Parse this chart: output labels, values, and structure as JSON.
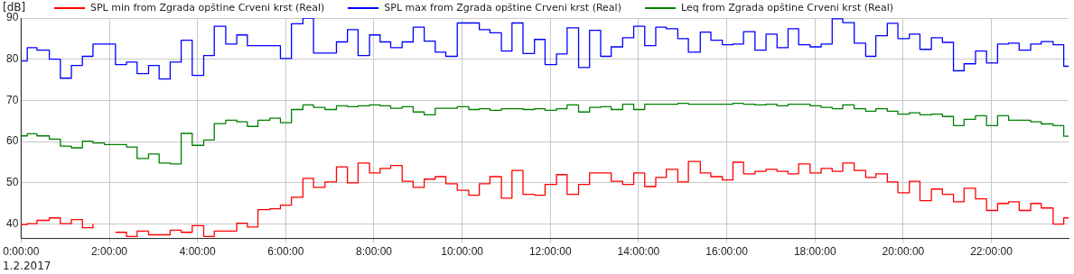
{
  "chart_data": {
    "type": "step",
    "ylabel": "[dB]",
    "annotations": [
      "1.2.2017"
    ],
    "legend": "top left",
    "grid": true,
    "line_style": "solid",
    "xlim": [
      0,
      23.75
    ],
    "ylim": [
      36.5,
      90
    ],
    "xticks": [
      {
        "value": 0,
        "label": "0:00:00"
      },
      {
        "value": 2,
        "label": "2:00:00"
      },
      {
        "value": 4,
        "label": "4:00:00"
      },
      {
        "value": 6,
        "label": "6:00:00"
      },
      {
        "value": 8,
        "label": "8:00:00"
      },
      {
        "value": 10,
        "label": "10:00:00"
      },
      {
        "value": 12,
        "label": "12:00:00"
      },
      {
        "value": 14,
        "label": "14:00:00"
      },
      {
        "value": 16,
        "label": "16:00:00"
      },
      {
        "value": 18,
        "label": "18:00:00"
      },
      {
        "value": 20,
        "label": "20:00:00"
      },
      {
        "value": 22,
        "label": "22:00:00"
      }
    ],
    "yticks": [
      40,
      50,
      60,
      70,
      80,
      90
    ],
    "series": [
      {
        "name": "SPL min from Zgrada opštine Crveni krst (Real)",
        "color": "#ff0000",
        "x": [
          0,
          0.14,
          0.36,
          0.64,
          0.89,
          1.14,
          1.39,
          1.63,
          1.89,
          2.14,
          2.39,
          2.63,
          2.89,
          3.38,
          3.63,
          3.88,
          4.14,
          4.38,
          4.89,
          5.13,
          5.37,
          5.64,
          5.88,
          6.13,
          6.39,
          6.63,
          6.89,
          7.15,
          7.4,
          7.64,
          7.9,
          8.14,
          8.38,
          8.64,
          8.89,
          9.14,
          9.39,
          9.63,
          9.89,
          10.15,
          10.39,
          10.63,
          10.89,
          11.13,
          11.38,
          11.64,
          11.88,
          12.14,
          12.38,
          12.64,
          12.89,
          13.38,
          13.64,
          13.89,
          14.14,
          14.39,
          14.63,
          14.89,
          15.13,
          15.4,
          15.64,
          15.9,
          16.14,
          16.38,
          16.64,
          16.89,
          17.14,
          17.39,
          17.63,
          17.89,
          18.14,
          18.39,
          18.63,
          18.89,
          19.15,
          19.38,
          19.64,
          19.88,
          20.14,
          20.38,
          20.64,
          20.89,
          21.14,
          21.38,
          21.64,
          21.89,
          22.14,
          22.39,
          22.63,
          22.89,
          23.13,
          23.4,
          23.64,
          23.75
        ],
        "values": [
          39.9,
          40.1,
          40.9,
          41.5,
          40.1,
          41.1,
          39.1,
          40.1,
          null,
          38.0,
          37.0,
          38.3,
          37.4,
          38.5,
          38.0,
          39.6,
          37.0,
          38.3,
          40.2,
          39.3,
          43.5,
          43.7,
          44.6,
          46.5,
          51.1,
          48.9,
          50.2,
          53.9,
          50.0,
          54.8,
          52.4,
          53.5,
          54.2,
          50.4,
          48.9,
          50.9,
          51.5,
          49.8,
          48.2,
          47.0,
          49.8,
          51.5,
          46.3,
          53.0,
          47.2,
          47.0,
          49.6,
          52.0,
          47.2,
          49.6,
          52.4,
          50.4,
          49.6,
          52.4,
          49.1,
          51.3,
          53.3,
          50.2,
          55.2,
          52.4,
          51.5,
          50.7,
          55.0,
          52.2,
          52.8,
          53.3,
          52.8,
          52.2,
          54.6,
          52.4,
          53.5,
          52.8,
          54.8,
          53.0,
          51.3,
          52.2,
          50.2,
          47.6,
          50.4,
          45.7,
          48.5,
          47.2,
          45.4,
          48.7,
          46.1,
          43.3,
          45.0,
          45.4,
          43.3,
          45.0,
          43.9,
          40.0,
          41.5,
          41.5
        ]
      },
      {
        "name": "SPL max from Zgrada opštine Crveni krst (Real)",
        "color": "#0000ff",
        "x": [
          0,
          0.14,
          0.36,
          0.64,
          0.89,
          1.14,
          1.39,
          1.63,
          2.14,
          2.39,
          2.63,
          2.89,
          3.13,
          3.38,
          3.63,
          3.88,
          4.14,
          4.38,
          4.64,
          4.89,
          5.13,
          5.88,
          6.13,
          6.39,
          6.63,
          7.15,
          7.4,
          7.64,
          7.9,
          8.14,
          8.38,
          8.64,
          8.89,
          9.14,
          9.39,
          9.63,
          9.89,
          10.39,
          10.63,
          10.89,
          11.13,
          11.38,
          11.64,
          11.88,
          12.14,
          12.38,
          12.64,
          12.89,
          13.14,
          13.38,
          13.64,
          13.89,
          14.14,
          14.39,
          14.63,
          14.89,
          15.13,
          15.4,
          15.64,
          15.9,
          16.14,
          16.38,
          16.64,
          16.89,
          17.14,
          17.39,
          17.63,
          17.89,
          18.14,
          18.39,
          18.63,
          18.89,
          19.15,
          19.38,
          19.64,
          19.88,
          20.14,
          20.38,
          20.64,
          20.89,
          21.14,
          21.38,
          21.64,
          21.89,
          22.14,
          22.39,
          22.63,
          22.89,
          23.13,
          23.4,
          23.64,
          23.75
        ],
        "values": [
          79.6,
          82.8,
          82.2,
          80.0,
          75.4,
          78.5,
          80.7,
          83.7,
          78.7,
          79.3,
          76.5,
          78.5,
          75.2,
          79.3,
          84.6,
          76.1,
          80.9,
          88.0,
          83.7,
          85.9,
          83.3,
          80.2,
          88.6,
          90.0,
          81.5,
          84.2,
          87.2,
          80.9,
          85.9,
          84.2,
          82.8,
          84.2,
          87.8,
          84.4,
          81.7,
          80.7,
          88.8,
          87.2,
          86.4,
          82.0,
          88.8,
          81.4,
          84.8,
          78.7,
          81.3,
          87.6,
          78.0,
          87.0,
          80.7,
          83.0,
          85.2,
          88.0,
          83.3,
          87.8,
          87.4,
          85.0,
          81.7,
          86.6,
          84.6,
          83.5,
          83.7,
          86.7,
          82.2,
          86.1,
          82.8,
          87.4,
          83.5,
          83.0,
          83.7,
          89.8,
          88.9,
          83.9,
          80.7,
          85.7,
          88.7,
          85.0,
          86.1,
          82.4,
          85.2,
          84.1,
          77.2,
          78.9,
          82.0,
          79.1,
          83.7,
          83.9,
          82.2,
          83.7,
          84.3,
          83.5,
          78.3,
          78.3
        ]
      },
      {
        "name": "Leq from Zgrada opštine Crveni krst (Real)",
        "color": "#008000",
        "x": [
          0,
          0.14,
          0.36,
          0.64,
          0.89,
          1.14,
          1.39,
          1.63,
          1.89,
          2.39,
          2.63,
          2.89,
          3.13,
          3.38,
          3.63,
          3.88,
          4.14,
          4.38,
          4.64,
          4.89,
          5.13,
          5.37,
          5.64,
          5.88,
          6.13,
          6.39,
          6.63,
          6.89,
          7.15,
          7.4,
          7.64,
          7.9,
          8.14,
          8.38,
          8.64,
          8.89,
          9.14,
          9.39,
          9.89,
          10.15,
          10.39,
          10.63,
          10.89,
          11.38,
          11.64,
          11.88,
          12.14,
          12.38,
          12.64,
          12.89,
          13.14,
          13.38,
          13.64,
          13.89,
          14.14,
          14.89,
          15.13,
          16.14,
          16.38,
          16.64,
          16.89,
          17.14,
          17.39,
          17.89,
          18.14,
          18.39,
          18.63,
          18.89,
          19.15,
          19.38,
          19.64,
          19.88,
          20.14,
          20.38,
          20.64,
          20.89,
          21.14,
          21.38,
          21.64,
          21.89,
          22.14,
          22.39,
          22.89,
          23.13,
          23.4,
          23.64,
          23.75
        ],
        "values": [
          61.4,
          61.9,
          61.4,
          60.6,
          58.9,
          58.5,
          60.1,
          59.7,
          59.3,
          58.7,
          55.9,
          57.0,
          54.8,
          54.6,
          62.0,
          59.1,
          60.4,
          64.4,
          65.2,
          64.8,
          63.7,
          65.2,
          65.7,
          64.6,
          67.8,
          68.9,
          68.3,
          67.8,
          68.7,
          68.5,
          68.7,
          68.9,
          68.7,
          68.1,
          68.5,
          67.2,
          66.5,
          68.1,
          68.5,
          67.8,
          68.0,
          67.6,
          68.0,
          67.8,
          68.0,
          67.6,
          68.0,
          68.9,
          67.2,
          68.3,
          68.5,
          67.8,
          69.1,
          67.8,
          69.1,
          69.3,
          69.1,
          69.3,
          69.1,
          68.9,
          69.1,
          68.7,
          69.1,
          68.7,
          68.3,
          68.0,
          68.9,
          68.0,
          67.4,
          68.0,
          67.4,
          66.7,
          67.0,
          66.5,
          66.7,
          66.1,
          63.9,
          65.4,
          66.3,
          63.9,
          66.3,
          65.2,
          64.8,
          64.3,
          63.9,
          61.3,
          61.3
        ]
      }
    ]
  }
}
